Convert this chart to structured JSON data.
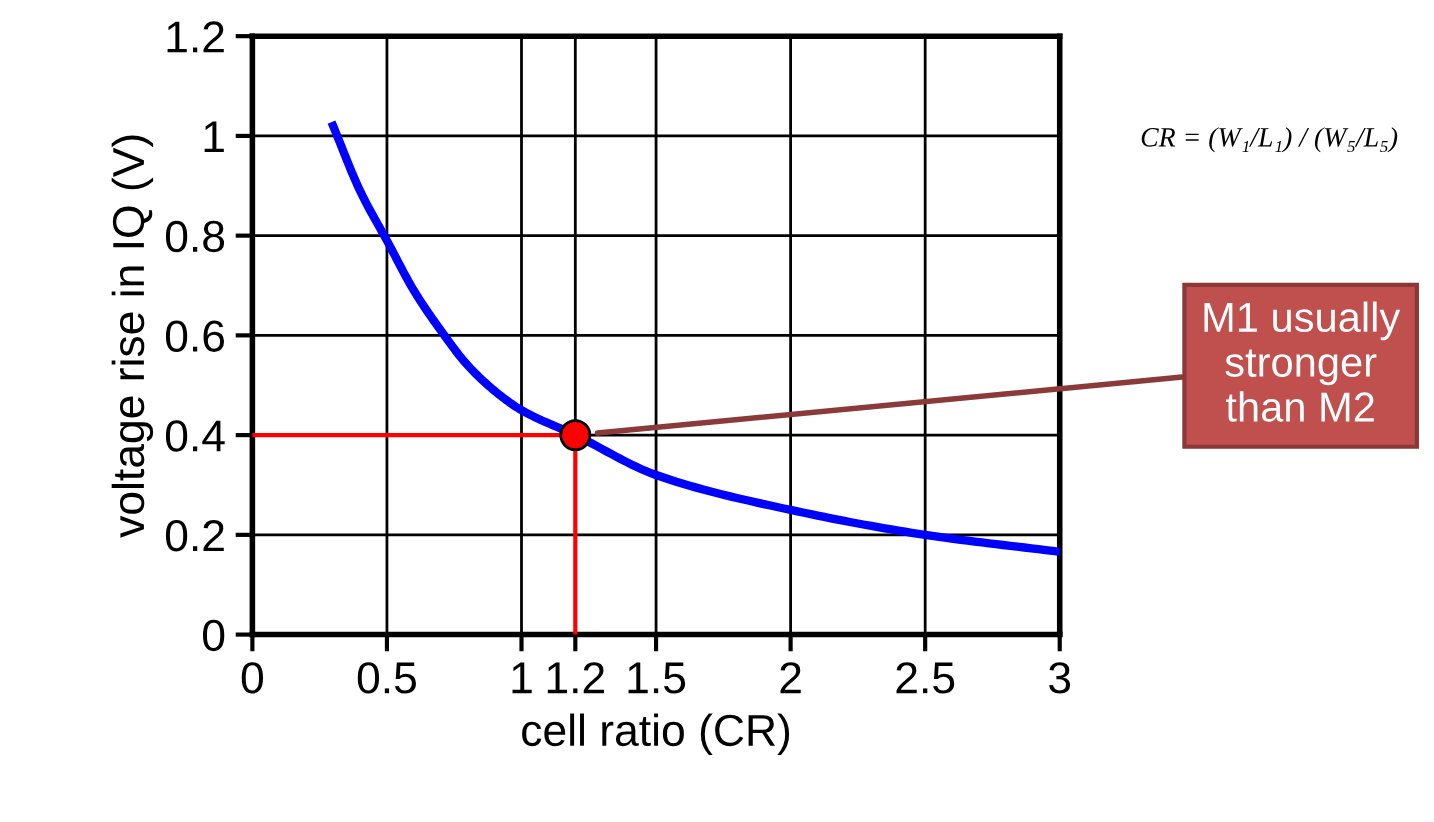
{
  "chart_data": {
    "type": "line",
    "xlabel": "cell ratio (CR)",
    "ylabel": "voltage rise in IQ (V)",
    "xlim": [
      0,
      3
    ],
    "ylim": [
      0,
      1.2
    ],
    "xticks": [
      0,
      0.5,
      1,
      1.2,
      1.5,
      2,
      2.5,
      3
    ],
    "yticks": [
      0,
      0.2,
      0.4,
      0.6,
      0.8,
      1,
      1.2
    ],
    "grid": true,
    "line_style": "solid",
    "series": [
      {
        "color": "#0000ff",
        "x": [
          0.3,
          0.4,
          0.5,
          0.6,
          0.7,
          0.8,
          0.92,
          1.0,
          1.2,
          1.5,
          2,
          2.5,
          3
        ],
        "values": [
          1.02,
          0.89,
          0.79,
          0.69,
          0.61,
          0.54,
          0.48,
          0.45,
          0.4,
          0.32,
          0.25,
          0.2,
          0.166
        ]
      },
      {
        "color": "#ff0000",
        "x": [
          0,
          1.2,
          1.2
        ],
        "values": [
          0.4,
          0.4,
          0
        ]
      },
      {
        "type": "scatter",
        "color": "#ff0000",
        "x": [
          1.2
        ],
        "values": [
          0.4
        ]
      }
    ],
    "annotations": [
      "M1 usually\nstronger\nthan M2",
      "CR = (W₁/L₁) / (W₅/L₅)"
    ]
  }
}
